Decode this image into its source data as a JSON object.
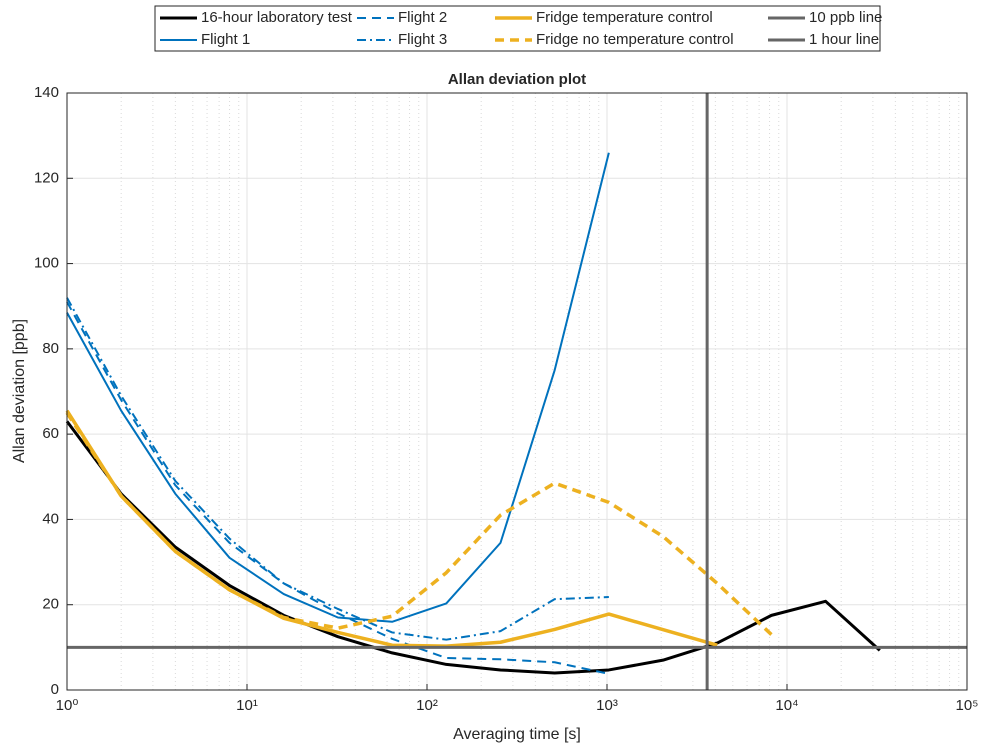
{
  "chart_data": {
    "type": "line",
    "title": "Allan deviation plot",
    "x_label": "Averaging time [s]",
    "y_label": "Allan deviation [ppb]",
    "x_scale": "log",
    "xlim": [
      1,
      100000
    ],
    "ylim": [
      0,
      140
    ],
    "xticks": [
      {
        "value": 1,
        "label": "10⁰"
      },
      {
        "value": 10,
        "label": "10¹"
      },
      {
        "value": 100,
        "label": "10²"
      },
      {
        "value": 1000,
        "label": "10³"
      },
      {
        "value": 10000,
        "label": "10⁴"
      },
      {
        "value": 100000,
        "label": "10⁵"
      }
    ],
    "yticks": [
      0,
      20,
      40,
      60,
      80,
      100,
      120,
      140
    ],
    "grid": true,
    "minor_grid": true,
    "legend": "top",
    "series": [
      {
        "name": "16-hour laboratory test",
        "color": "#000000",
        "dash": "solid",
        "width": 3,
        "x": [
          1,
          2,
          4,
          8,
          16,
          32,
          64,
          128,
          256,
          512,
          1024,
          2048,
          4096,
          8192,
          16384,
          32768
        ],
        "values": [
          63,
          46,
          33.5,
          24.5,
          17.5,
          12.5,
          8.7,
          6,
          4.7,
          4,
          4.7,
          7,
          11,
          17.5,
          20.8,
          9.3
        ]
      },
      {
        "name": "Flight 1",
        "color": "#0072bd",
        "dash": "solid",
        "width": 2,
        "x": [
          1,
          2,
          4,
          8,
          16,
          32,
          64,
          128,
          256,
          512,
          1024
        ],
        "values": [
          88.5,
          65.5,
          46,
          31,
          22.5,
          17,
          16,
          20.3,
          34.5,
          75,
          126
        ]
      },
      {
        "name": "Flight 2",
        "color": "#0072bd",
        "dash": "dashed",
        "width": 2,
        "x": [
          1,
          2,
          4,
          8,
          16,
          32,
          64,
          128,
          256,
          512,
          1024
        ],
        "values": [
          91,
          68,
          48,
          34.5,
          25,
          18,
          12,
          7.5,
          7.2,
          6.5,
          3.8
        ]
      },
      {
        "name": "Flight 3",
        "color": "#0072bd",
        "dash": "dashdot",
        "width": 2,
        "x": [
          1,
          2,
          4,
          8,
          16,
          32,
          64,
          128,
          256,
          512,
          1024
        ],
        "values": [
          92,
          69,
          49,
          35.5,
          25,
          19,
          13.5,
          11.8,
          13.8,
          21.3,
          21.8
        ]
      },
      {
        "name": "Fridge temperature control",
        "color": "#edb120",
        "dash": "solid",
        "width": 3.5,
        "x": [
          1,
          2,
          4,
          8,
          16,
          32,
          64,
          128,
          256,
          512,
          1024,
          4096
        ],
        "values": [
          65.5,
          45.5,
          32.5,
          23.5,
          16.8,
          13.5,
          10.5,
          10.3,
          11.2,
          14.2,
          17.8,
          10.5
        ]
      },
      {
        "name": "Fridge no temperature control",
        "color": "#edb120",
        "dash": "dashed",
        "width": 3.5,
        "x": [
          1,
          2,
          4,
          8,
          16,
          32,
          64,
          128,
          256,
          512,
          1024,
          2048,
          4096,
          8192
        ],
        "values": [
          65,
          45.5,
          32.5,
          23.5,
          17,
          14.5,
          17.3,
          27.5,
          41,
          48.5,
          44,
          36,
          25,
          13
        ]
      }
    ],
    "reference_lines": [
      {
        "name": "10 ppb line",
        "axis": "y",
        "value": 10,
        "color": "#666666",
        "width": 3
      },
      {
        "name": "1 hour line",
        "axis": "x",
        "value": 3600,
        "color": "#666666",
        "width": 3
      }
    ]
  }
}
